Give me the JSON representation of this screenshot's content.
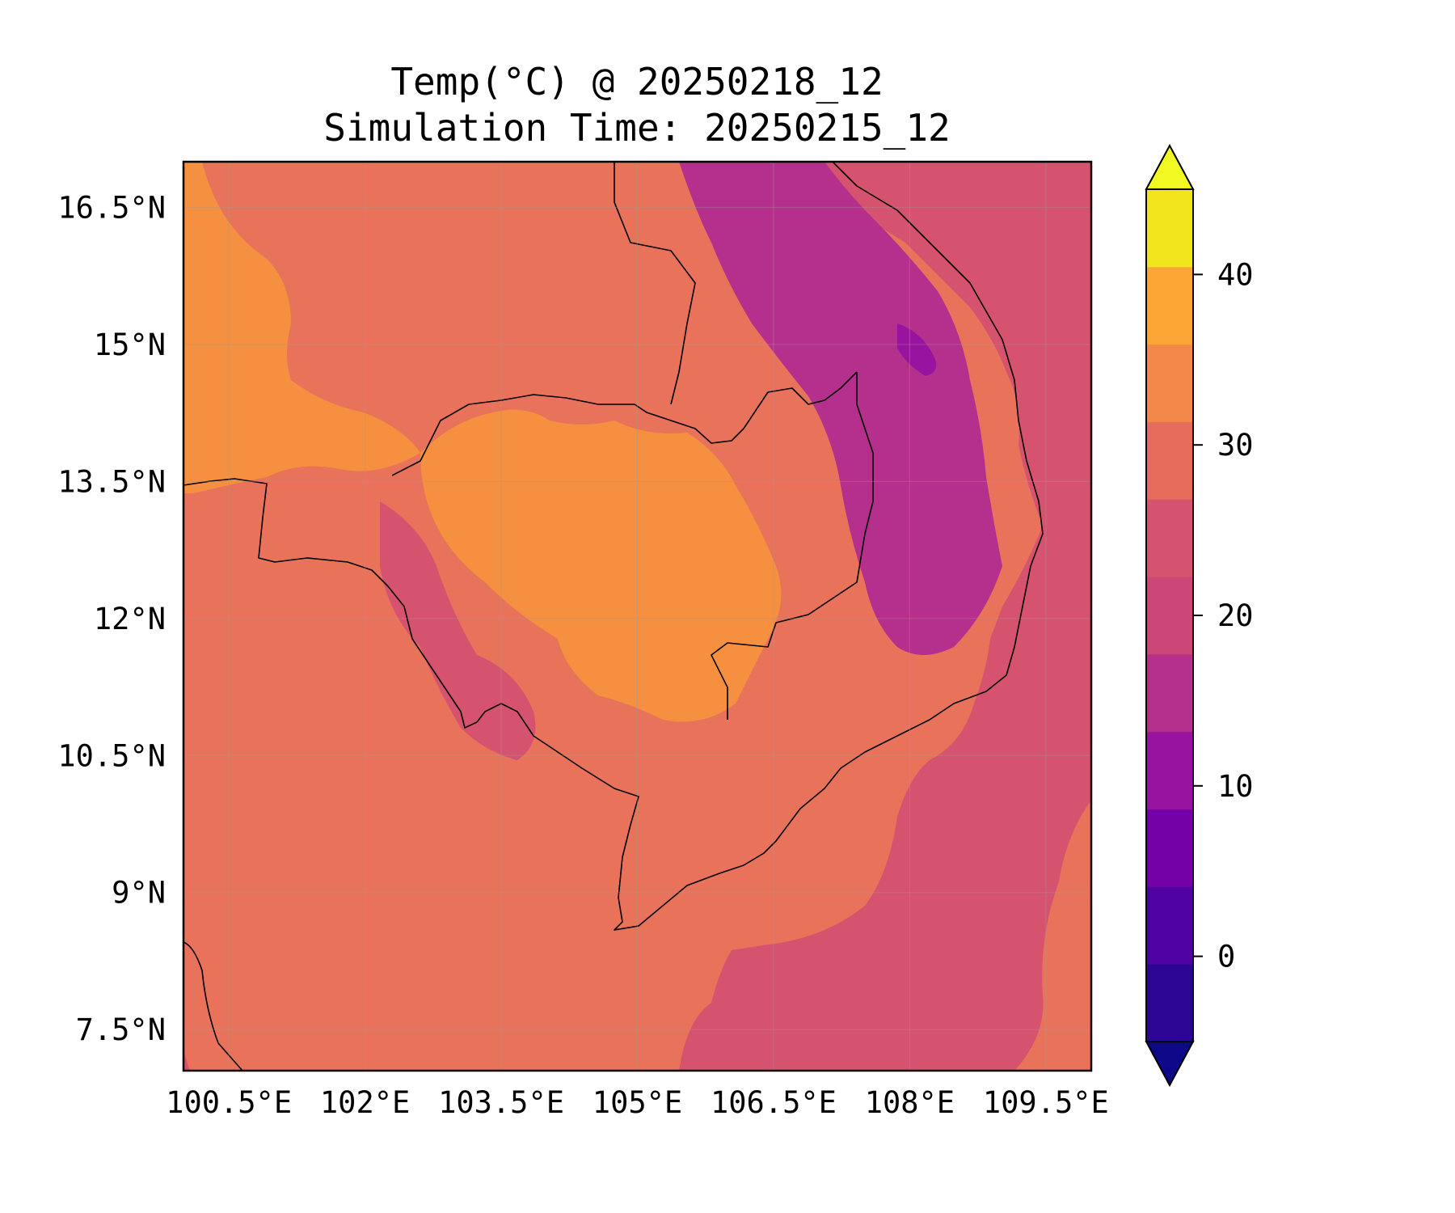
{
  "title": {
    "line1": "Temp(°C) @ 20250218_12",
    "line2": "Simulation Time: 20250215_12"
  },
  "map": {
    "lon_ticks": [
      "100.5°E",
      "102°E",
      "103.5°E",
      "105°E",
      "106.5°E",
      "108°E",
      "109.5°E"
    ],
    "lat_ticks": [
      "16.5°N",
      "15°N",
      "13.5°N",
      "12°N",
      "10.5°N",
      "9°N",
      "7.5°N"
    ],
    "lon_values": [
      100.5,
      102,
      103.5,
      105,
      106.5,
      108,
      109.5
    ],
    "lat_values": [
      16.5,
      15,
      13.5,
      12,
      10.5,
      9,
      7.5
    ],
    "extent": {
      "lon": [
        100.0,
        110.0
      ],
      "lat": [
        7.05,
        17.0
      ]
    },
    "grid": true
  },
  "colorbar": {
    "tick_labels": [
      "0",
      "10",
      "20",
      "30",
      "40"
    ],
    "tick_values": [
      0,
      10,
      20,
      30,
      40
    ],
    "range": [
      -5,
      45
    ],
    "extend": "both",
    "colors": [
      "#0d0887",
      "#2c0594",
      "#5002a2",
      "#7401a8",
      "#9814a0",
      "#b52f8c",
      "#cc4778",
      "#d5536f",
      "#e66c5c",
      "#f48849",
      "#fca636",
      "#f1e51d",
      "#f0f921"
    ]
  }
}
